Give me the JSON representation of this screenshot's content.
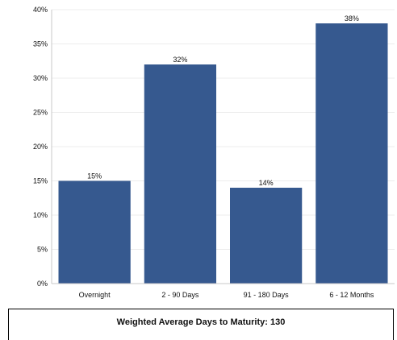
{
  "chart_data": {
    "type": "bar",
    "categories": [
      "Overnight",
      "2 - 90 Days",
      "91 - 180 Days",
      "6 - 12 Months"
    ],
    "values": [
      15,
      32,
      14,
      38
    ],
    "data_labels": [
      "15%",
      "32%",
      "14%",
      "38%"
    ],
    "bar_color": "#36598f",
    "ylim": [
      0,
      40
    ],
    "yticks": [
      0,
      5,
      10,
      15,
      20,
      25,
      30,
      35,
      40
    ],
    "ytick_labels": [
      "0%",
      "5%",
      "10%",
      "15%",
      "20%",
      "25%",
      "30%",
      "35%",
      "40%"
    ],
    "grid": true,
    "title": "",
    "xlabel": "",
    "ylabel": ""
  },
  "footer": {
    "label": "Weighted Average Days to Maturity:",
    "value": "130"
  }
}
